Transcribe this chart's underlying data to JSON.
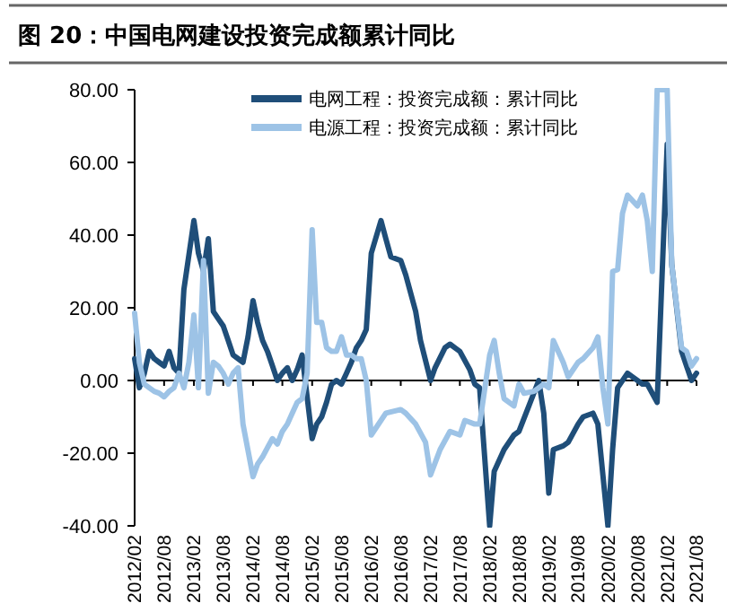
{
  "chart_data": {
    "type": "line",
    "title": "图 20：中国电网建设投资完成额累计同比",
    "xlim": [
      "2012-02",
      "2021-08"
    ],
    "xticks": [
      {
        "value": "2012-02",
        "label": "2012/02"
      },
      {
        "value": "2012-08",
        "label": "2012/08"
      },
      {
        "value": "2013-02",
        "label": "2013/02"
      },
      {
        "value": "2013-08",
        "label": "2013/08"
      },
      {
        "value": "2014-02",
        "label": "2014/02"
      },
      {
        "value": "2014-08",
        "label": "2014/08"
      },
      {
        "value": "2015-02",
        "label": "2015/02"
      },
      {
        "value": "2015-08",
        "label": "2015/08"
      },
      {
        "value": "2016-02",
        "label": "2016/02"
      },
      {
        "value": "2016-08",
        "label": "2016/08"
      },
      {
        "value": "2017-02",
        "label": "2017/02"
      },
      {
        "value": "2017-08",
        "label": "2017/08"
      },
      {
        "value": "2018-02",
        "label": "2018/02"
      },
      {
        "value": "2018-08",
        "label": "2018/08"
      },
      {
        "value": "2019-02",
        "label": "2019/02"
      },
      {
        "value": "2019-08",
        "label": "2019/08"
      },
      {
        "value": "2020-02",
        "label": "2020/02"
      },
      {
        "value": "2020-08",
        "label": "2020/08"
      },
      {
        "value": "2021-02",
        "label": "2021/02"
      },
      {
        "value": "2021-08",
        "label": "2021/08"
      }
    ],
    "ylim": [
      -40,
      80
    ],
    "yticks": [
      {
        "value": -40,
        "label": "-40.00"
      },
      {
        "value": -20,
        "label": "-20.00"
      },
      {
        "value": 0,
        "label": "0.00"
      },
      {
        "value": 20,
        "label": "20.00"
      },
      {
        "value": 40,
        "label": "40.00"
      },
      {
        "value": 60,
        "label": "60.00"
      },
      {
        "value": 80,
        "label": "80.00"
      }
    ],
    "legend": "top right",
    "marker": "none",
    "line_style": "solid",
    "series": [
      {
        "name": "电网工程：投资完成额：累计同比",
        "color": "#1f4e79",
        "x": [
          "2012-02",
          "2012-03",
          "2012-04",
          "2012-05",
          "2012-06",
          "2012-07",
          "2012-08",
          "2012-09",
          "2012-10",
          "2012-11",
          "2012-12",
          "2013-02",
          "2013-03",
          "2013-04",
          "2013-05",
          "2013-06",
          "2013-07",
          "2013-08",
          "2013-09",
          "2013-10",
          "2013-11",
          "2013-12",
          "2014-01",
          "2014-02",
          "2014-03",
          "2014-04",
          "2014-05",
          "2014-06",
          "2014-07",
          "2014-08",
          "2014-09",
          "2014-10",
          "2014-11",
          "2014-12",
          "2015-02",
          "2015-03",
          "2015-04",
          "2015-05",
          "2015-06",
          "2015-07",
          "2015-08",
          "2015-09",
          "2015-10",
          "2015-11",
          "2015-12",
          "2016-01",
          "2016-02",
          "2016-04",
          "2016-05",
          "2016-06",
          "2016-08",
          "2016-09",
          "2016-11",
          "2016-12",
          "2017-02",
          "2017-03",
          "2017-05",
          "2017-06",
          "2017-08",
          "2017-10",
          "2017-11",
          "2017-12",
          "2018-02",
          "2018-03",
          "2018-05",
          "2018-07",
          "2018-08",
          "2018-10",
          "2018-12",
          "2019-01",
          "2019-02",
          "2019-03",
          "2019-05",
          "2019-06",
          "2019-08",
          "2019-09",
          "2019-11",
          "2019-12",
          "2020-02",
          "2020-03",
          "2020-04",
          "2020-06",
          "2020-07",
          "2020-09",
          "2020-10",
          "2020-12",
          "2021-02",
          "2021-03",
          "2021-05",
          "2021-07",
          "2021-08"
        ],
        "values": [
          6,
          -2,
          2,
          8,
          6,
          5,
          4,
          8,
          3.5,
          2,
          25,
          44,
          35,
          30,
          39,
          19,
          17,
          15,
          11,
          7,
          6,
          5,
          12,
          22,
          16,
          11,
          8,
          4,
          0,
          2,
          3.5,
          0,
          3,
          7,
          -16,
          -12,
          -10,
          -6,
          -1,
          0,
          -1,
          2,
          5,
          9,
          11,
          14,
          35,
          44,
          39,
          34,
          33,
          29,
          19,
          11,
          0,
          3.5,
          9,
          10,
          8,
          3,
          -1,
          -2,
          -40,
          -25,
          -19,
          -15,
          -14,
          -7,
          0,
          -9,
          -31,
          -19,
          -18,
          -17,
          -12,
          -10,
          -9,
          -12,
          -40,
          -19,
          -2,
          2,
          1,
          -1,
          -1,
          -6,
          65,
          32,
          8,
          0,
          2
        ]
      },
      {
        "name": "电源工程：投资完成额：累计同比",
        "color": "#9dc3e6",
        "x": [
          "2012-02",
          "2012-03",
          "2012-04",
          "2012-05",
          "2012-06",
          "2012-07",
          "2012-08",
          "2012-09",
          "2012-10",
          "2012-11",
          "2012-12",
          "2013-01",
          "2013-02",
          "2013-03",
          "2013-04",
          "2013-05",
          "2013-06",
          "2013-07",
          "2013-08",
          "2013-09",
          "2013-10",
          "2013-11",
          "2013-12",
          "2014-02",
          "2014-03",
          "2014-04",
          "2014-05",
          "2014-06",
          "2014-07",
          "2014-08",
          "2014-09",
          "2014-10",
          "2014-11",
          "2014-12",
          "2015-01",
          "2015-02",
          "2015-03",
          "2015-04",
          "2015-05",
          "2015-06",
          "2015-07",
          "2015-08",
          "2015-09",
          "2015-10",
          "2015-11",
          "2015-12",
          "2016-01",
          "2016-02",
          "2016-05",
          "2016-08",
          "2016-09",
          "2016-11",
          "2017-01",
          "2017-02",
          "2017-04",
          "2017-06",
          "2017-08",
          "2017-09",
          "2017-11",
          "2017-12",
          "2018-02",
          "2018-03",
          "2018-04",
          "2018-05",
          "2018-07",
          "2018-08",
          "2018-09",
          "2018-11",
          "2019-01",
          "2019-02",
          "2019-03",
          "2019-05",
          "2019-06",
          "2019-08",
          "2019-09",
          "2019-11",
          "2019-12",
          "2020-01",
          "2020-02",
          "2020-03",
          "2020-04",
          "2020-05",
          "2020-06",
          "2020-08",
          "2020-09",
          "2020-10",
          "2020-11",
          "2020-12",
          "2021-02",
          "2021-03",
          "2021-05",
          "2021-06",
          "2021-07",
          "2021-08"
        ],
        "values": [
          18.5,
          5,
          -1,
          -2,
          -3,
          -3.5,
          -4.5,
          -3,
          -2,
          2,
          -2,
          5,
          18,
          -2,
          33,
          -3.5,
          5,
          4,
          2,
          -1,
          2,
          3.5,
          -12,
          -26.5,
          -23,
          -21,
          -18.5,
          -16,
          -17.5,
          -14,
          -12,
          -9,
          -6,
          -5,
          2,
          41.5,
          16,
          16,
          9,
          8,
          8,
          12,
          7,
          7,
          6,
          6,
          0,
          -15,
          -9,
          -8,
          -9,
          -12,
          -17,
          -26,
          -19,
          -14,
          -15,
          -11,
          -12,
          -12,
          7,
          11,
          2,
          -5,
          -7,
          -1,
          -3.5,
          -3,
          -1,
          -2,
          11,
          5,
          1,
          5,
          6,
          9,
          12,
          -2,
          -12,
          30,
          30.5,
          46,
          51,
          48,
          51,
          44,
          30,
          80,
          80,
          32,
          9,
          8,
          4,
          6
        ]
      }
    ]
  }
}
